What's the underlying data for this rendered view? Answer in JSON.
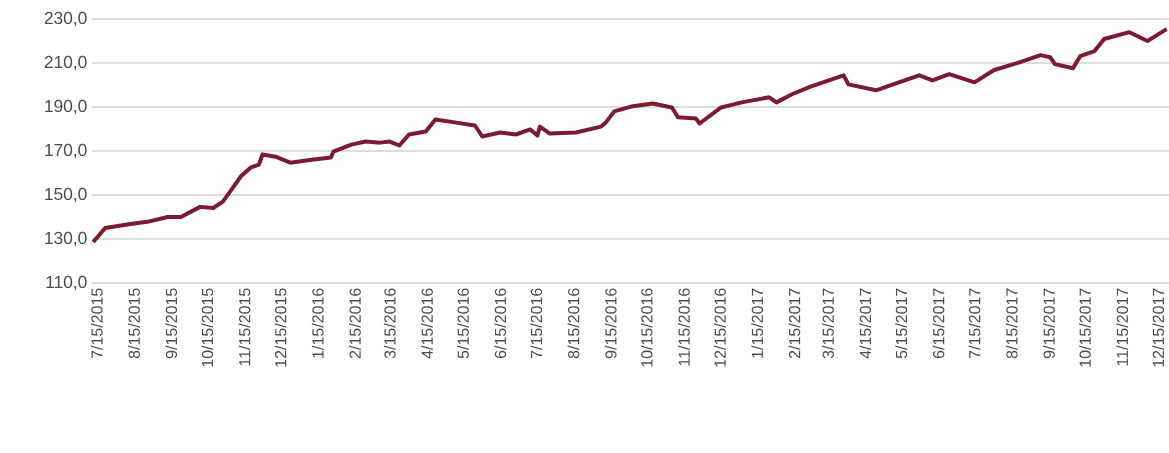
{
  "chart_data": {
    "type": "line",
    "color": "#7b1a30",
    "grid": "y",
    "x": [
      "2015-07-12",
      "2015-07-17",
      "2015-07-22",
      "2015-08-12",
      "2015-08-26",
      "2015-09-12",
      "2015-09-23",
      "2015-10-09",
      "2015-10-20",
      "2015-10-28",
      "2015-11-03",
      "2015-11-12",
      "2015-11-20",
      "2015-11-27",
      "2015-11-30",
      "2015-12-11",
      "2015-12-23",
      "2016-01-10",
      "2016-01-26",
      "2016-01-28",
      "2016-02-12",
      "2016-02-24",
      "2016-03-07",
      "2016-03-15",
      "2016-03-23",
      "2016-03-31",
      "2016-04-14",
      "2016-04-22",
      "2016-05-08",
      "2016-05-25",
      "2016-05-31",
      "2016-06-15",
      "2016-06-28",
      "2016-07-10",
      "2016-07-16",
      "2016-07-18",
      "2016-07-26",
      "2016-08-17",
      "2016-09-07",
      "2016-09-11",
      "2016-09-18",
      "2016-10-02",
      "2016-10-20",
      "2016-11-05",
      "2016-11-10",
      "2016-11-25",
      "2016-11-28",
      "2016-12-16",
      "2017-01-02",
      "2017-01-25",
      "2017-01-31",
      "2017-02-13",
      "2017-03-01",
      "2017-03-28",
      "2017-04-01",
      "2017-04-24",
      "2017-05-13",
      "2017-05-30",
      "2017-06-10",
      "2017-06-24",
      "2017-07-15",
      "2017-07-31",
      "2017-08-22",
      "2017-09-08",
      "2017-09-16",
      "2017-09-20",
      "2017-10-05",
      "2017-10-11",
      "2017-10-23",
      "2017-10-31",
      "2017-11-21",
      "2017-12-06",
      "2017-12-12",
      "2017-12-22"
    ],
    "values": [
      128.6,
      131.8,
      135.0,
      136.8,
      137.8,
      140.0,
      140.0,
      144.6,
      144.1,
      147.0,
      151.5,
      158.5,
      162.4,
      163.8,
      168.4,
      167.4,
      164.7,
      166.0,
      167.0,
      169.7,
      172.9,
      174.3,
      173.8,
      174.3,
      172.5,
      177.5,
      178.9,
      184.3,
      183.0,
      181.6,
      176.6,
      178.4,
      177.5,
      179.8,
      177.0,
      181.1,
      178.0,
      178.4,
      181.1,
      183.0,
      188.0,
      190.2,
      191.6,
      189.8,
      185.3,
      184.8,
      182.5,
      189.8,
      192.1,
      194.4,
      192.1,
      195.8,
      199.4,
      204.4,
      200.3,
      197.6,
      201.2,
      204.4,
      202.1,
      204.9,
      201.2,
      206.7,
      210.4,
      213.6,
      212.6,
      209.5,
      207.6,
      213.1,
      215.4,
      220.9,
      224.0,
      220.0,
      222.0,
      225.4
    ],
    "xlim": [
      "2015-07-11",
      "2017-12-24"
    ],
    "xticks": [
      {
        "value": "2015-07-15",
        "label": "7/15/2015"
      },
      {
        "value": "2015-08-15",
        "label": "8/15/2015"
      },
      {
        "value": "2015-09-15",
        "label": "9/15/2015"
      },
      {
        "value": "2015-10-15",
        "label": "10/15/2015"
      },
      {
        "value": "2015-11-15",
        "label": "11/15/2015"
      },
      {
        "value": "2015-12-15",
        "label": "12/15/2015"
      },
      {
        "value": "2016-01-15",
        "label": "1/15/2016"
      },
      {
        "value": "2016-02-15",
        "label": "2/15/2016"
      },
      {
        "value": "2016-03-15",
        "label": "3/15/2016"
      },
      {
        "value": "2016-04-15",
        "label": "4/15/2016"
      },
      {
        "value": "2016-05-15",
        "label": "5/15/2016"
      },
      {
        "value": "2016-06-15",
        "label": "6/15/2016"
      },
      {
        "value": "2016-07-15",
        "label": "7/15/2016"
      },
      {
        "value": "2016-08-15",
        "label": "8/15/2016"
      },
      {
        "value": "2016-09-15",
        "label": "9/15/2016"
      },
      {
        "value": "2016-10-15",
        "label": "10/15/2016"
      },
      {
        "value": "2016-11-15",
        "label": "11/15/2016"
      },
      {
        "value": "2016-12-15",
        "label": "12/15/2016"
      },
      {
        "value": "2017-01-15",
        "label": "1/15/2017"
      },
      {
        "value": "2017-02-15",
        "label": "2/15/2017"
      },
      {
        "value": "2017-03-15",
        "label": "3/15/2017"
      },
      {
        "value": "2017-04-15",
        "label": "4/15/2017"
      },
      {
        "value": "2017-05-15",
        "label": "5/15/2017"
      },
      {
        "value": "2017-06-15",
        "label": "6/15/2017"
      },
      {
        "value": "2017-07-15",
        "label": "7/15/2017"
      },
      {
        "value": "2017-08-15",
        "label": "8/15/2017"
      },
      {
        "value": "2017-09-15",
        "label": "9/15/2017"
      },
      {
        "value": "2017-10-15",
        "label": "10/15/2017"
      },
      {
        "value": "2017-11-15",
        "label": "11/15/2017"
      },
      {
        "value": "2017-12-15",
        "label": "12/15/2017"
      }
    ],
    "ylim": [
      110,
      230
    ],
    "yticks": [
      {
        "value": 110,
        "label": "110,0"
      },
      {
        "value": 130,
        "label": "130,0"
      },
      {
        "value": 150,
        "label": "150,0"
      },
      {
        "value": 170,
        "label": "170,0"
      },
      {
        "value": 190,
        "label": "190,0"
      },
      {
        "value": 210,
        "label": "210,0"
      },
      {
        "value": 230,
        "label": "230,0"
      }
    ]
  }
}
